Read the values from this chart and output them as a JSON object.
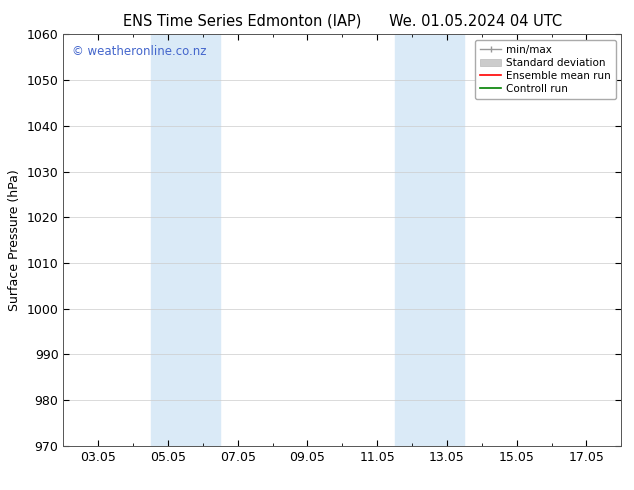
{
  "title": "ENS Time Series Edmonton (IAP)      We. 01.05.2024 04 UTC",
  "ylabel": "Surface Pressure (hPa)",
  "ylim": [
    970,
    1060
  ],
  "yticks": [
    970,
    980,
    990,
    1000,
    1010,
    1020,
    1030,
    1040,
    1050,
    1060
  ],
  "xtick_labels": [
    "03.05",
    "05.05",
    "07.05",
    "09.05",
    "11.05",
    "13.05",
    "15.05",
    "17.05"
  ],
  "xtick_positions": [
    2,
    4,
    6,
    8,
    10,
    12,
    14,
    16
  ],
  "xlim": [
    1,
    17
  ],
  "shaded_bands": [
    {
      "x_start": 3.5,
      "x_end": 5.5
    },
    {
      "x_start": 10.5,
      "x_end": 12.5
    }
  ],
  "shaded_color": "#daeaf7",
  "watermark_text": "© weatheronline.co.nz",
  "watermark_color": "#4466cc",
  "background_color": "#ffffff",
  "plot_bg_color": "#ffffff",
  "grid_color": "#cccccc",
  "font_size": 9,
  "title_font_size": 10.5
}
